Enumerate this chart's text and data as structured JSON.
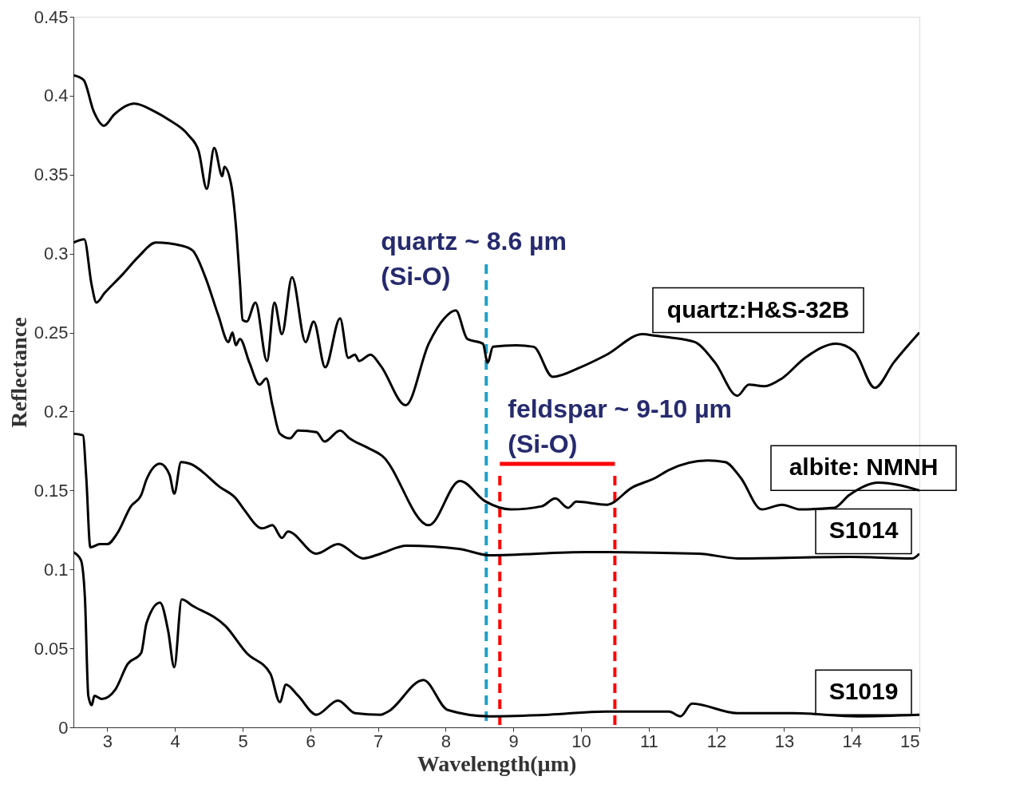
{
  "chart_data": {
    "type": "line",
    "xlabel": "Wavelength(µm)",
    "ylabel": "Reflectance",
    "xlim": [
      2.5,
      15
    ],
    "xticks": [
      3,
      4,
      5,
      6,
      7,
      8,
      9,
      10,
      11,
      12,
      13,
      14,
      15
    ],
    "ylim": [
      0,
      0.45
    ],
    "yticks": [
      0,
      0.05,
      0.1,
      0.15,
      0.2,
      0.25,
      0.3,
      0.35,
      0.4,
      0.45
    ],
    "grid": false,
    "line_style": "solid",
    "marker": "none",
    "series": [
      {
        "name": "quartz:H&S-32B",
        "color": "#000000",
        "x": [
          2.5,
          2.65,
          2.8,
          2.95,
          3.1,
          3.4,
          3.7,
          3.9,
          4.2,
          4.35,
          4.47,
          4.58,
          4.7,
          4.73,
          4.83,
          4.9,
          4.96,
          5.0,
          5.06,
          5.19,
          5.36,
          5.47,
          5.58,
          5.73,
          5.93,
          6.05,
          6.22,
          6.44,
          6.56,
          6.66,
          6.72,
          6.89,
          7.04,
          7.41,
          7.75,
          7.98,
          8.15,
          8.32,
          8.55,
          8.62,
          8.7,
          9.04,
          9.3,
          9.58,
          9.99,
          10.38,
          10.91,
          11.1,
          11.3,
          11.68,
          11.98,
          12.31,
          12.48,
          12.71,
          12.97,
          13.31,
          13.77,
          14.04,
          14.34,
          14.62,
          15.0
        ],
        "values": [
          0.413,
          0.41,
          0.39,
          0.381,
          0.388,
          0.395,
          0.39,
          0.385,
          0.375,
          0.365,
          0.341,
          0.367,
          0.349,
          0.355,
          0.344,
          0.318,
          0.282,
          0.258,
          0.257,
          0.269,
          0.232,
          0.269,
          0.249,
          0.285,
          0.244,
          0.257,
          0.228,
          0.259,
          0.234,
          0.236,
          0.232,
          0.236,
          0.229,
          0.204,
          0.243,
          0.259,
          0.264,
          0.246,
          0.243,
          0.231,
          0.241,
          0.242,
          0.241,
          0.222,
          0.228,
          0.236,
          0.249,
          0.248,
          0.247,
          0.244,
          0.231,
          0.21,
          0.217,
          0.216,
          0.221,
          0.234,
          0.243,
          0.238,
          0.215,
          0.231,
          0.25
        ]
      },
      {
        "name": "albite: NMNH",
        "color": "#000000",
        "x": [
          2.5,
          2.66,
          2.77,
          2.84,
          2.96,
          3.23,
          3.46,
          3.72,
          4.1,
          4.26,
          4.45,
          4.64,
          4.79,
          4.85,
          4.9,
          4.96,
          5.1,
          5.25,
          5.35,
          5.44,
          5.55,
          5.7,
          5.82,
          6.09,
          6.21,
          6.44,
          6.58,
          6.85,
          7.06,
          7.75,
          8.21,
          8.59,
          8.96,
          9.42,
          9.62,
          9.81,
          9.93,
          10.38,
          10.76,
          11.1,
          11.3,
          11.87,
          12.13,
          12.36,
          12.67,
          12.97,
          13.24,
          13.74,
          13.96,
          14.39,
          15.0
        ],
        "values": [
          0.307,
          0.309,
          0.28,
          0.269,
          0.275,
          0.287,
          0.298,
          0.307,
          0.305,
          0.302,
          0.285,
          0.261,
          0.244,
          0.25,
          0.242,
          0.246,
          0.231,
          0.217,
          0.221,
          0.204,
          0.186,
          0.183,
          0.188,
          0.187,
          0.181,
          0.188,
          0.183,
          0.177,
          0.172,
          0.128,
          0.156,
          0.143,
          0.138,
          0.14,
          0.145,
          0.139,
          0.143,
          0.141,
          0.152,
          0.158,
          0.163,
          0.169,
          0.168,
          0.158,
          0.138,
          0.141,
          0.138,
          0.139,
          0.147,
          0.155,
          0.15
        ]
      },
      {
        "name": "S1014",
        "color": "#000000",
        "x": [
          2.5,
          2.64,
          2.69,
          2.75,
          2.89,
          3.0,
          3.15,
          3.35,
          3.5,
          3.58,
          3.78,
          3.92,
          3.99,
          4.09,
          4.22,
          4.67,
          4.9,
          5.02,
          5.29,
          5.44,
          5.58,
          5.67,
          6.09,
          6.41,
          6.78,
          7.04,
          7.42,
          8.2,
          8.64,
          10.09,
          11.74,
          12.31,
          13.96,
          14.9,
          15.0
        ],
        "values": [
          0.186,
          0.185,
          0.158,
          0.114,
          0.116,
          0.116,
          0.123,
          0.14,
          0.147,
          0.157,
          0.167,
          0.16,
          0.148,
          0.168,
          0.167,
          0.152,
          0.145,
          0.138,
          0.126,
          0.128,
          0.12,
          0.124,
          0.11,
          0.116,
          0.107,
          0.11,
          0.115,
          0.113,
          0.109,
          0.111,
          0.11,
          0.107,
          0.108,
          0.107,
          0.11
        ]
      },
      {
        "name": "S1019",
        "color": "#000000",
        "x": [
          2.5,
          2.61,
          2.67,
          2.72,
          2.77,
          2.81,
          2.92,
          3.12,
          3.3,
          3.5,
          3.58,
          3.78,
          3.9,
          3.99,
          4.1,
          4.26,
          4.75,
          5.06,
          5.41,
          5.55,
          5.64,
          5.82,
          6.09,
          6.41,
          6.66,
          7.04,
          7.15,
          7.67,
          8.03,
          8.64,
          9.52,
          10.36,
          11.3,
          11.47,
          11.64,
          12.31,
          13.13,
          14.08,
          15.0
        ],
        "values": [
          0.111,
          0.106,
          0.082,
          0.02,
          0.014,
          0.02,
          0.018,
          0.024,
          0.04,
          0.047,
          0.066,
          0.079,
          0.061,
          0.038,
          0.081,
          0.077,
          0.064,
          0.047,
          0.034,
          0.016,
          0.027,
          0.02,
          0.008,
          0.017,
          0.009,
          0.008,
          0.01,
          0.03,
          0.011,
          0.007,
          0.008,
          0.01,
          0.01,
          0.007,
          0.015,
          0.009,
          0.009,
          0.007,
          0.008
        ]
      }
    ],
    "ref_lines": [
      {
        "axis": "x",
        "value": 8.6,
        "label": "quartz ~ 8.6 µm (Si-O)",
        "color": "#1ea0c8",
        "line_style": "dashed"
      },
      {
        "axis": "x",
        "value": 8.8,
        "label": "feldspar ~ 9-10 µm (Si-O)",
        "color": "#ff0000",
        "line_style": "dashed"
      },
      {
        "axis": "x",
        "value": 10.5,
        "color": "#ff0000",
        "line_style": "dashed"
      }
    ]
  }
}
